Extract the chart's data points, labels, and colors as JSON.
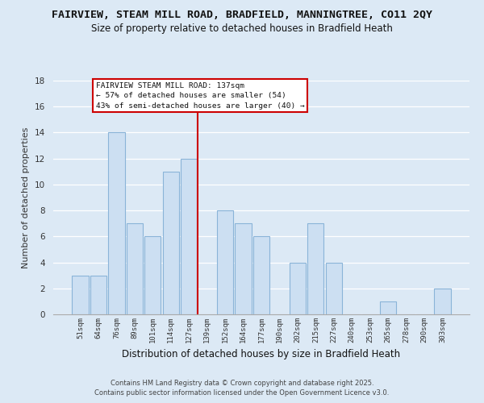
{
  "title1": "FAIRVIEW, STEAM MILL ROAD, BRADFIELD, MANNINGTREE, CO11 2QY",
  "title2": "Size of property relative to detached houses in Bradfield Heath",
  "xlabel": "Distribution of detached houses by size in Bradfield Heath",
  "ylabel": "Number of detached properties",
  "bar_labels": [
    "51sqm",
    "64sqm",
    "76sqm",
    "89sqm",
    "101sqm",
    "114sqm",
    "127sqm",
    "139sqm",
    "152sqm",
    "164sqm",
    "177sqm",
    "190sqm",
    "202sqm",
    "215sqm",
    "227sqm",
    "240sqm",
    "253sqm",
    "265sqm",
    "278sqm",
    "290sqm",
    "303sqm"
  ],
  "bar_values": [
    3,
    3,
    14,
    7,
    6,
    11,
    12,
    0,
    8,
    7,
    6,
    0,
    4,
    7,
    4,
    0,
    0,
    1,
    0,
    0,
    2
  ],
  "bar_color": "#ccdff2",
  "bar_edge_color": "#8ab4d8",
  "annotation_title": "FAIRVIEW STEAM MILL ROAD: 137sqm",
  "annotation_line1": "← 57% of detached houses are smaller (54)",
  "annotation_line2": "43% of semi-detached houses are larger (40) →",
  "annotation_box_edge": "#cc0000",
  "vline_color": "#cc0000",
  "ylim": [
    0,
    18
  ],
  "yticks": [
    0,
    2,
    4,
    6,
    8,
    10,
    12,
    14,
    16,
    18
  ],
  "footer1": "Contains HM Land Registry data © Crown copyright and database right 2025.",
  "footer2": "Contains public sector information licensed under the Open Government Licence v3.0.",
  "bg_color": "#dce9f5",
  "plot_bg_color": "#dce9f5",
  "grid_color": "#ffffff"
}
